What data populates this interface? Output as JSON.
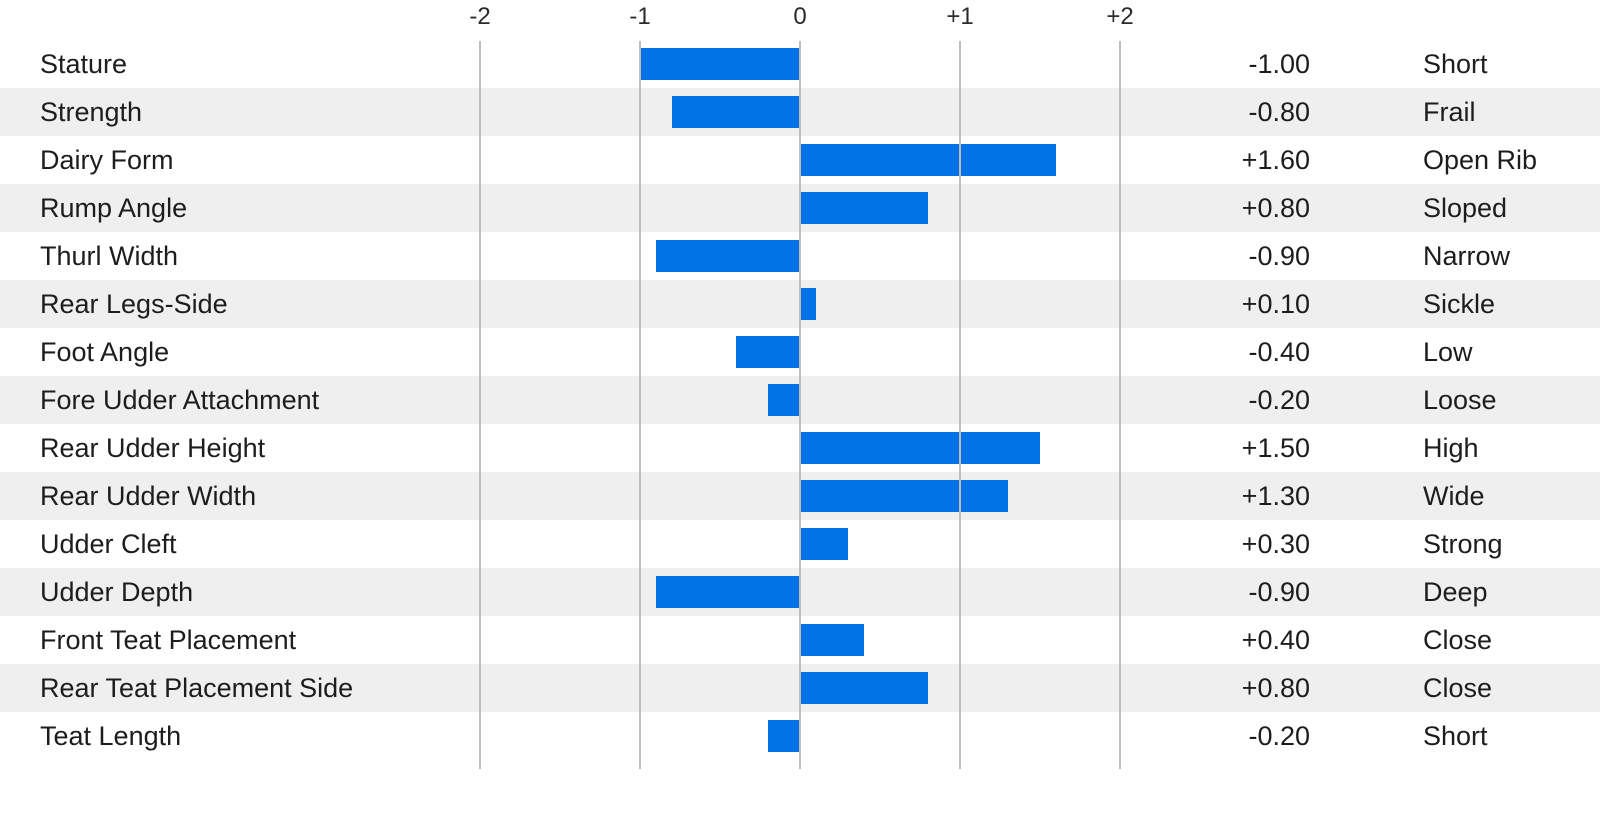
{
  "colors": {
    "bar": "#0173e6",
    "row_stripe": "#efefef",
    "gridline": "#bdbdbd",
    "text": "#1d1d1f",
    "tick_text": "#2b2b2d",
    "background": "#ffffff"
  },
  "chart_data": {
    "type": "bar",
    "orientation": "horizontal",
    "title": "",
    "xlabel": "",
    "ylabel": "",
    "grid": true,
    "xlim": [
      -2,
      2
    ],
    "axis_ticks": [
      {
        "label": "-2",
        "value": -2
      },
      {
        "label": "-1",
        "value": -1
      },
      {
        "label": "0",
        "value": 0
      },
      {
        "label": "+1",
        "value": 1
      },
      {
        "label": "+2",
        "value": 2
      }
    ],
    "categories": [
      "Stature",
      "Strength",
      "Dairy Form",
      "Rump Angle",
      "Thurl Width",
      "Rear Legs-Side",
      "Foot Angle",
      "Fore Udder Attachment",
      "Rear Udder Height",
      "Rear Udder Width",
      "Udder Cleft",
      "Udder Depth",
      "Front Teat Placement",
      "Rear Teat Placement Side",
      "Teat Length"
    ],
    "values": [
      -1.0,
      -0.8,
      1.6,
      0.8,
      -0.9,
      0.1,
      -0.4,
      -0.2,
      1.5,
      1.3,
      0.3,
      -0.9,
      0.4,
      0.8,
      -0.2
    ],
    "value_labels": [
      "-1.00",
      "-0.80",
      "+1.60",
      "+0.80",
      "-0.90",
      "+0.10",
      "-0.40",
      "-0.20",
      "+1.50",
      "+1.30",
      "+0.30",
      "-0.90",
      "+0.40",
      "+0.80",
      "-0.20"
    ],
    "descriptors": [
      "Short",
      "Frail",
      "Open Rib",
      "Sloped",
      "Narrow",
      "Sickle",
      "Low",
      "Loose",
      "High",
      "Wide",
      "Strong",
      "Deep",
      "Close",
      "Close",
      "Short"
    ]
  }
}
